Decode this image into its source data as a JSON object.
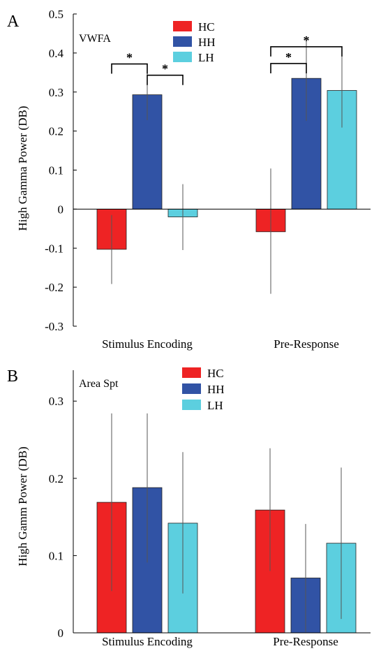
{
  "colors": {
    "HC": "#ee2324",
    "HH": "#3153a5",
    "LH": "#5ccfdf"
  },
  "chart_data": [
    {
      "type": "bar",
      "panel": "A",
      "region": "VWFA",
      "ylabel": "High Gamma Power (DB)",
      "ylim": [
        -0.3,
        0.5
      ],
      "yticks": [
        -0.3,
        -0.2,
        -0.1,
        0,
        0.1,
        0.2,
        0.3,
        0.4,
        0.5
      ],
      "ytick_labels": [
        "-0.3",
        "-0.2",
        "-0.1",
        "0",
        "0.1",
        "0.2",
        "0.3",
        "0.4",
        "0.5"
      ],
      "categories": [
        "Stimulus Encoding",
        "Pre-Response"
      ],
      "legend": [
        "HC",
        "HH",
        "LH"
      ],
      "series": [
        {
          "name": "HC",
          "values": [
            -0.103,
            -0.058
          ],
          "err_low": [
            -0.192,
            -0.217
          ],
          "err_high": [
            -0.015,
            0.104
          ]
        },
        {
          "name": "HH",
          "values": [
            0.293,
            0.335
          ],
          "err_low": [
            0.228,
            0.226
          ],
          "err_high": [
            0.356,
            0.443
          ]
        },
        {
          "name": "LH",
          "values": [
            -0.02,
            0.304
          ],
          "err_low": [
            -0.105,
            0.209
          ],
          "err_high": [
            0.064,
            0.398
          ]
        }
      ],
      "significance": [
        {
          "category": 0,
          "from": "HC",
          "to": "HH",
          "level": 0.372,
          "label": "*"
        },
        {
          "category": 0,
          "from": "HH",
          "to": "LH",
          "level": 0.343,
          "label": "*"
        },
        {
          "category": 1,
          "from": "HC",
          "to": "HH",
          "level": 0.373,
          "label": "*"
        },
        {
          "category": 1,
          "from": "HC",
          "to": "LH",
          "level": 0.416,
          "label": "*"
        }
      ]
    },
    {
      "type": "bar",
      "panel": "B",
      "region": "Area Spt",
      "ylabel": "High Gamm Power (DB)",
      "ylim": [
        0,
        0.34
      ],
      "yticks": [
        0,
        0.1,
        0.2,
        0.3
      ],
      "ytick_labels": [
        "0",
        "0.1",
        "0.2",
        "0.3"
      ],
      "categories": [
        "Stimulus Encoding",
        "Pre-Response"
      ],
      "legend": [
        "HC",
        "HH",
        "LH"
      ],
      "series": [
        {
          "name": "HC",
          "values": [
            0.169,
            0.159
          ],
          "err_low": [
            0.054,
            0.08
          ],
          "err_high": [
            0.284,
            0.239
          ]
        },
        {
          "name": "HH",
          "values": [
            0.188,
            0.071
          ],
          "err_low": [
            0.091,
            0.001
          ],
          "err_high": [
            0.284,
            0.141
          ]
        },
        {
          "name": "LH",
          "values": [
            0.142,
            0.116
          ],
          "err_low": [
            0.051,
            0.018
          ],
          "err_high": [
            0.234,
            0.214
          ]
        }
      ],
      "significance": []
    }
  ]
}
